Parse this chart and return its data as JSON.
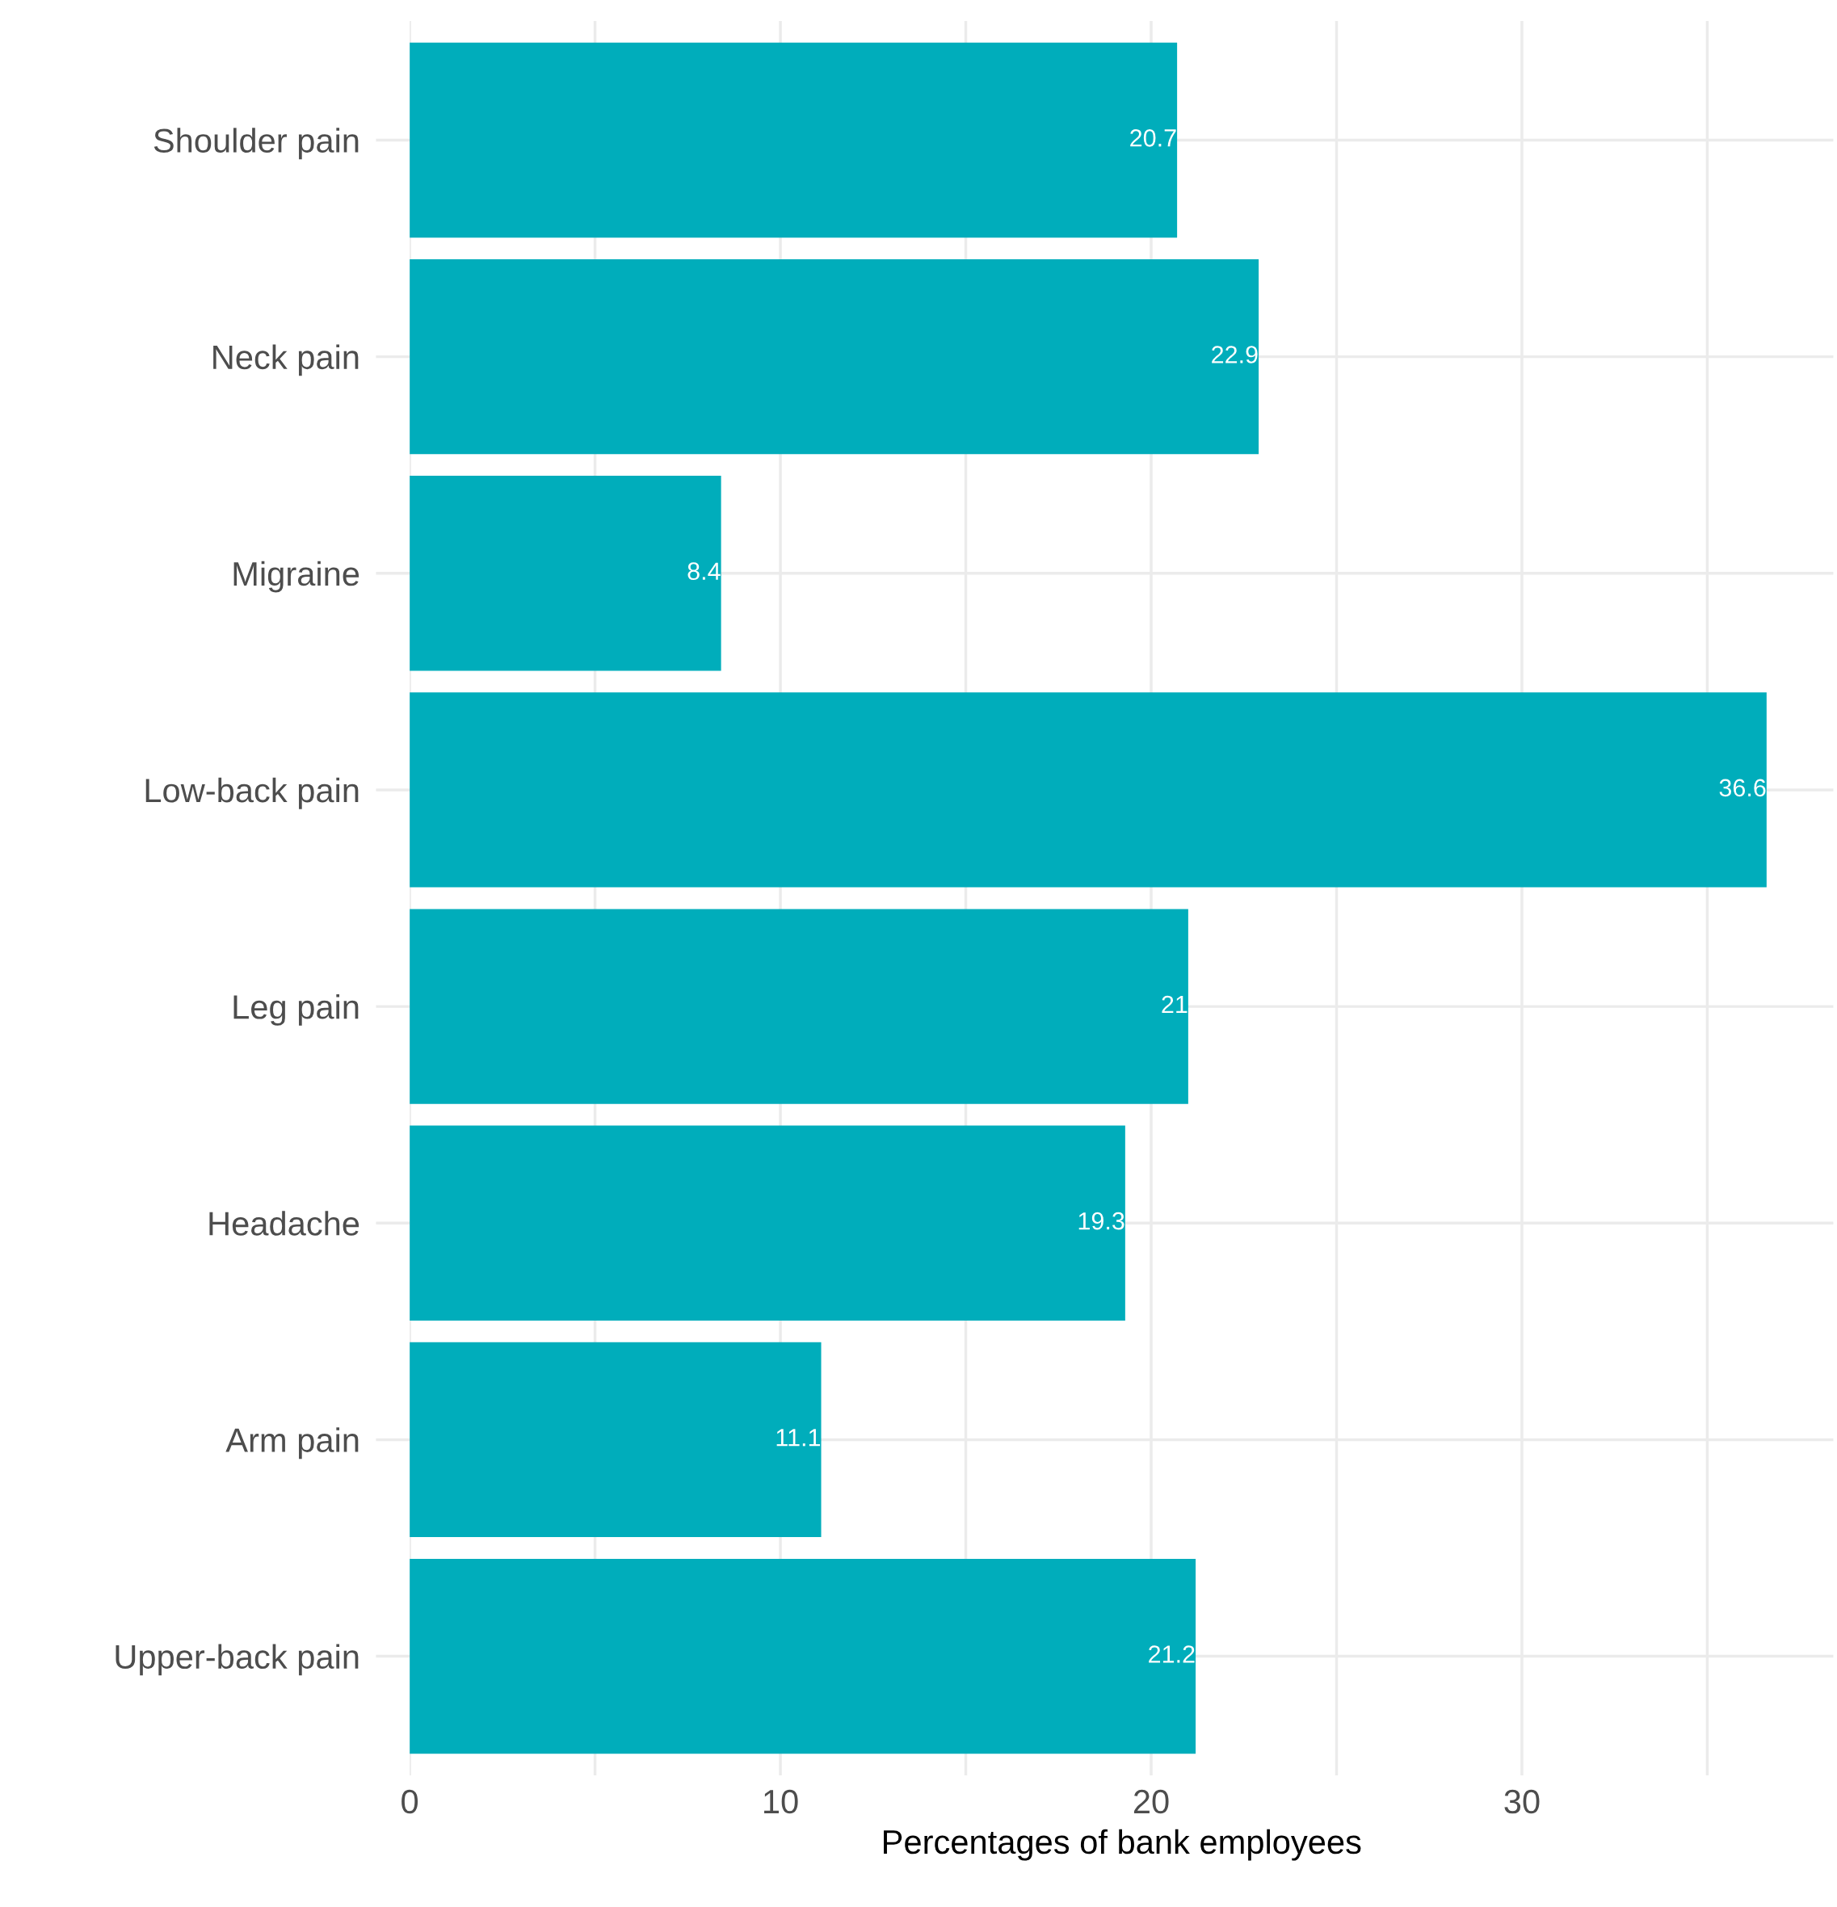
{
  "chart_data": {
    "type": "bar",
    "orientation": "horizontal",
    "xlabel": "Percentages of bank employees",
    "categories": [
      "Shoulder pain",
      "Neck pain",
      "Migraine",
      "Low-back pain",
      "Leg pain",
      "Headache",
      "Arm pain",
      "Upper-back pain"
    ],
    "values": [
      20.7,
      22.9,
      8.4,
      36.6,
      21,
      19.3,
      11.1,
      21.2
    ],
    "color": "#00adbb",
    "data_labels": true,
    "grid": true,
    "xlim": [
      0,
      38.4
    ],
    "xticks": [
      0,
      {
        "value": 5,
        "label": null
      },
      10,
      {
        "value": 15,
        "label": null
      },
      20,
      {
        "value": 25,
        "label": null
      },
      30,
      {
        "value": 35,
        "label": null
      }
    ]
  }
}
